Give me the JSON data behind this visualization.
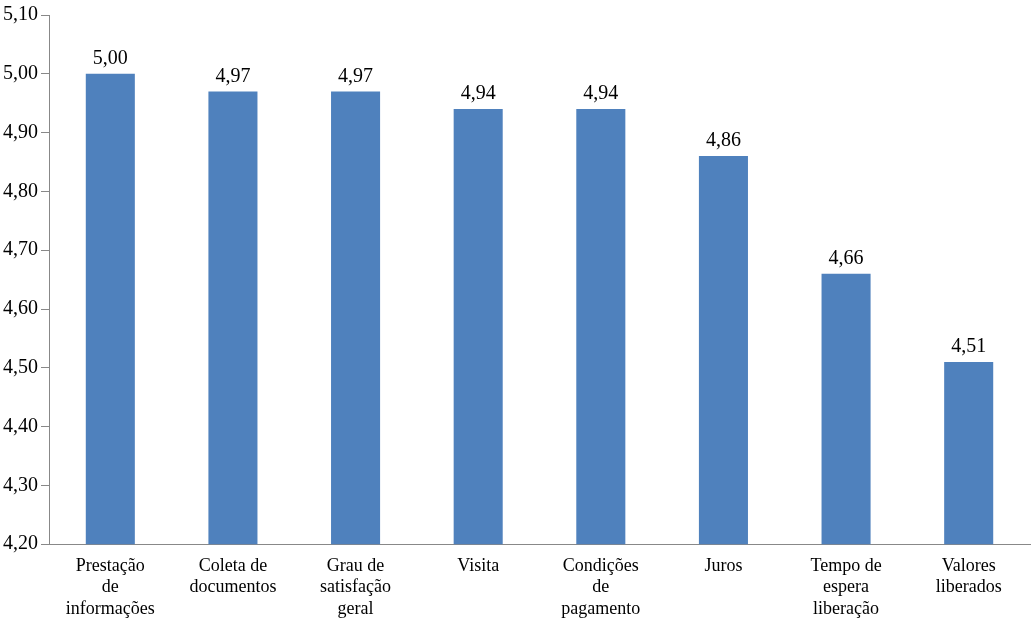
{
  "chart_data": {
    "type": "bar",
    "categories": [
      "Prestação de informações",
      "Coleta de documentos",
      "Grau de satisfação geral",
      "Visita",
      "Condições de pagamento",
      "Juros",
      "Tempo de espera liberação",
      "Valores liberados"
    ],
    "values": [
      5.0,
      4.97,
      4.97,
      4.94,
      4.94,
      4.86,
      4.66,
      4.51
    ],
    "value_labels": [
      "5,00",
      "4,97",
      "4,97",
      "4,94",
      "4,94",
      "4,86",
      "4,66",
      "4,51"
    ],
    "color": "#4f81bd",
    "ylim": [
      4.2,
      5.1
    ],
    "yticks": [
      {
        "value": 4.2,
        "label": "4,20"
      },
      {
        "value": 4.3,
        "label": "4,30"
      },
      {
        "value": 4.4,
        "label": "4,40"
      },
      {
        "value": 4.5,
        "label": "4,50"
      },
      {
        "value": 4.6,
        "label": "4,60"
      },
      {
        "value": 4.7,
        "label": "4,70"
      },
      {
        "value": 4.8,
        "label": "4,80"
      },
      {
        "value": 4.9,
        "label": "4,90"
      },
      {
        "value": 5.0,
        "label": "5,00"
      },
      {
        "value": 5.1,
        "label": "5,10"
      }
    ],
    "grid": false,
    "legend": false
  }
}
